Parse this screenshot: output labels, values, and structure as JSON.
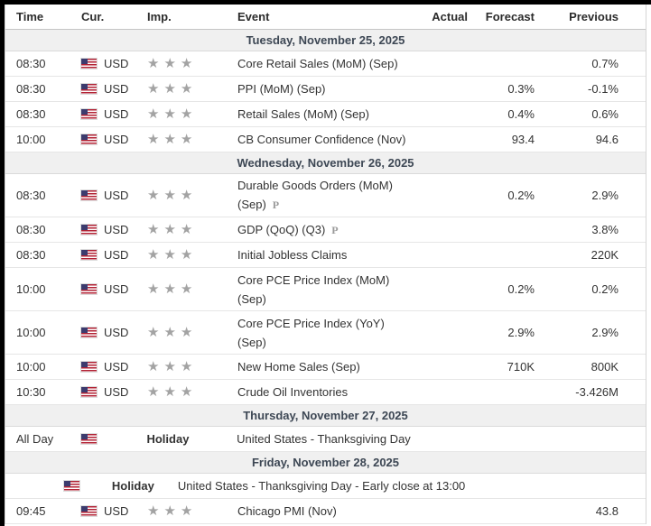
{
  "columns": [
    "Time",
    "Cur.",
    "Imp.",
    "Event",
    "Actual",
    "Forecast",
    "Previous"
  ],
  "icons": {
    "flag": "us-flag-icon",
    "importance": "star-icon",
    "preliminary": "preliminary-p-icon"
  },
  "colors": {
    "frame_edge": "#000000",
    "band_bg": "#f0f0f0",
    "band_text": "#3d4754",
    "star_gray": "#a3a3a3",
    "row_border": "#e6e6e6",
    "flag_red": "#b22234",
    "flag_blue": "#3c3b6e"
  },
  "days": [
    {
      "date_label": "Tuesday, November 25, 2025",
      "rows": [
        {
          "time": "08:30",
          "currency": "USD",
          "importance": 3,
          "holiday_label": "",
          "event_lines": [
            "Core Retail Sales (MoM) (Sep)"
          ],
          "preliminary": false,
          "wide": false,
          "actual": "",
          "forecast": "",
          "previous": "0.7%"
        },
        {
          "time": "08:30",
          "currency": "USD",
          "importance": 3,
          "holiday_label": "",
          "event_lines": [
            "PPI (MoM) (Sep)"
          ],
          "preliminary": false,
          "wide": false,
          "actual": "",
          "forecast": "0.3%",
          "previous": "-0.1%"
        },
        {
          "time": "08:30",
          "currency": "USD",
          "importance": 3,
          "holiday_label": "",
          "event_lines": [
            "Retail Sales (MoM) (Sep)"
          ],
          "preliminary": false,
          "wide": false,
          "actual": "",
          "forecast": "0.4%",
          "previous": "0.6%"
        },
        {
          "time": "10:00",
          "currency": "USD",
          "importance": 3,
          "holiday_label": "",
          "event_lines": [
            "CB Consumer Confidence (Nov)"
          ],
          "preliminary": false,
          "wide": false,
          "actual": "",
          "forecast": "93.4",
          "previous": "94.6"
        }
      ]
    },
    {
      "date_label": "Wednesday, November 26, 2025",
      "rows": [
        {
          "time": "08:30",
          "currency": "USD",
          "importance": 3,
          "holiday_label": "",
          "event_lines": [
            "Durable Goods Orders (MoM)",
            "(Sep)"
          ],
          "preliminary": true,
          "wide": false,
          "actual": "",
          "forecast": "0.2%",
          "previous": "2.9%"
        },
        {
          "time": "08:30",
          "currency": "USD",
          "importance": 3,
          "holiday_label": "",
          "event_lines": [
            "GDP (QoQ) (Q3)"
          ],
          "preliminary": true,
          "wide": false,
          "actual": "",
          "forecast": "",
          "previous": "3.8%"
        },
        {
          "time": "08:30",
          "currency": "USD",
          "importance": 3,
          "holiday_label": "",
          "event_lines": [
            "Initial Jobless Claims"
          ],
          "preliminary": false,
          "wide": false,
          "actual": "",
          "forecast": "",
          "previous": "220K"
        },
        {
          "time": "10:00",
          "currency": "USD",
          "importance": 3,
          "holiday_label": "",
          "event_lines": [
            "Core PCE Price Index (MoM)",
            "(Sep)"
          ],
          "preliminary": false,
          "wide": false,
          "actual": "",
          "forecast": "0.2%",
          "previous": "0.2%"
        },
        {
          "time": "10:00",
          "currency": "USD",
          "importance": 3,
          "holiday_label": "",
          "event_lines": [
            "Core PCE Price Index (YoY)",
            "(Sep)"
          ],
          "preliminary": false,
          "wide": false,
          "actual": "",
          "forecast": "2.9%",
          "previous": "2.9%"
        },
        {
          "time": "10:00",
          "currency": "USD",
          "importance": 3,
          "holiday_label": "",
          "event_lines": [
            "New Home Sales (Sep)"
          ],
          "preliminary": false,
          "wide": false,
          "actual": "",
          "forecast": "710K",
          "previous": "800K"
        },
        {
          "time": "10:30",
          "currency": "USD",
          "importance": 3,
          "holiday_label": "",
          "event_lines": [
            "Crude Oil Inventories"
          ],
          "preliminary": false,
          "wide": false,
          "actual": "",
          "forecast": "",
          "previous": "-3.426M"
        }
      ]
    },
    {
      "date_label": "Thursday, November 27, 2025",
      "rows": [
        {
          "time": "All Day",
          "currency": "",
          "importance": 0,
          "holiday_label": "Holiday",
          "event_lines": [
            "United States - Thanksgiving Day"
          ],
          "preliminary": false,
          "wide": true,
          "actual": "",
          "forecast": "",
          "previous": ""
        }
      ]
    },
    {
      "date_label": "Friday, November 28, 2025",
      "rows": [
        {
          "time": "",
          "currency": "",
          "importance": 0,
          "holiday_label": "Holiday",
          "event_lines": [
            "United States - Thanksgiving Day - Early close at 13:00"
          ],
          "preliminary": false,
          "wide": true,
          "actual": "",
          "forecast": "",
          "previous": ""
        },
        {
          "time": "09:45",
          "currency": "USD",
          "importance": 3,
          "holiday_label": "",
          "event_lines": [
            "Chicago PMI (Nov)"
          ],
          "preliminary": false,
          "wide": false,
          "actual": "",
          "forecast": "",
          "previous": "43.8"
        }
      ]
    }
  ]
}
